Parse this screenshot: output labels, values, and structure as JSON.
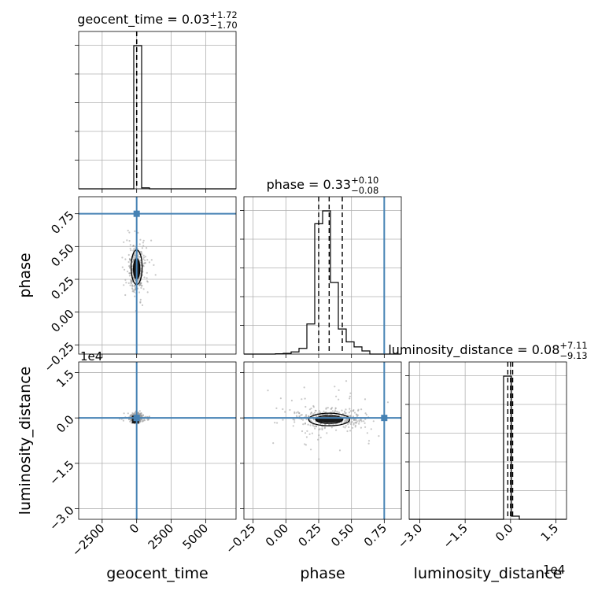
{
  "chart_data": {
    "type": "corner",
    "grid": true,
    "truth_color": "#4682b4",
    "parameters": [
      {
        "key": "geocent_time",
        "label": "geocent_time",
        "range": [
          -4200,
          7200
        ],
        "ticks": [
          -2500,
          0,
          2500,
          5000
        ],
        "tick_labels": [
          "−2500",
          "0",
          "2500",
          "5000"
        ],
        "title_name": "geocent_time",
        "title_median": "0.03",
        "title_plus": "+1.72",
        "title_minus": "−1.70",
        "quantiles": [
          -1.67,
          0.03,
          1.75
        ],
        "truth": 0
      },
      {
        "key": "phase",
        "label": "phase",
        "range": [
          -0.32,
          0.88
        ],
        "ticks": [
          -0.25,
          0.0,
          0.25,
          0.5,
          0.75
        ],
        "tick_labels": [
          "−0.25",
          "0.00",
          "0.25",
          "0.50",
          "0.75"
        ],
        "title_name": "phase",
        "title_median": "0.33",
        "title_plus": "+0.10",
        "title_minus": "−0.08",
        "quantiles": [
          0.25,
          0.33,
          0.43
        ],
        "truth": 0.75
      },
      {
        "key": "luminosity_distance",
        "label": "luminosity_distance",
        "range": [
          -3.35,
          1.85
        ],
        "ticks": [
          -3.0,
          -1.5,
          0.0,
          1.5
        ],
        "tick_labels": [
          "−3.0",
          "−1.5",
          "0.0",
          "1.5"
        ],
        "offset_text": "1e4",
        "title_name": "luminosity_distance",
        "title_median": "0.08",
        "title_plus": "+7.11",
        "title_minus": "−9.13",
        "quantiles": [
          -0.09,
          0.0,
          0.07
        ],
        "truth": 0.0
      }
    ],
    "histograms": {
      "geocent_time": {
        "bins": [
          -4200,
          -3630,
          -3060,
          -2490,
          -1920,
          -1350,
          -780,
          -210,
          360,
          930,
          1500,
          2070,
          2640,
          3210,
          3780,
          4350,
          4920,
          5490,
          6060,
          6630,
          7200
        ],
        "counts": [
          0,
          0,
          0,
          0,
          0,
          0,
          0,
          3630,
          25,
          0,
          0,
          0,
          0,
          0,
          0,
          0,
          0,
          0,
          0,
          0
        ]
      },
      "phase": {
        "bins": [
          -0.32,
          -0.26,
          -0.2,
          -0.14,
          -0.08,
          -0.02,
          0.04,
          0.1,
          0.16,
          0.22,
          0.28,
          0.34,
          0.4,
          0.46,
          0.52,
          0.58,
          0.64,
          0.7,
          0.76,
          0.82,
          0.88
        ],
        "counts": [
          0,
          0,
          0,
          0,
          2,
          5,
          15,
          40,
          210,
          910,
          1000,
          500,
          175,
          85,
          50,
          22,
          0,
          0,
          0,
          0
        ]
      },
      "luminosity_distance": {
        "bins": [
          -3.35,
          -3.09,
          -2.83,
          -2.57,
          -2.31,
          -2.05,
          -1.79,
          -1.53,
          -1.27,
          -1.01,
          -0.75,
          -0.49,
          -0.23,
          0.03,
          0.29,
          0.55,
          0.81,
          1.07,
          1.33,
          1.59,
          1.85
        ],
        "counts": [
          0,
          0,
          0,
          0,
          0,
          0,
          0,
          0,
          0,
          0,
          0,
          0,
          3640,
          80,
          0,
          0,
          0,
          0,
          0,
          0
        ]
      }
    }
  }
}
